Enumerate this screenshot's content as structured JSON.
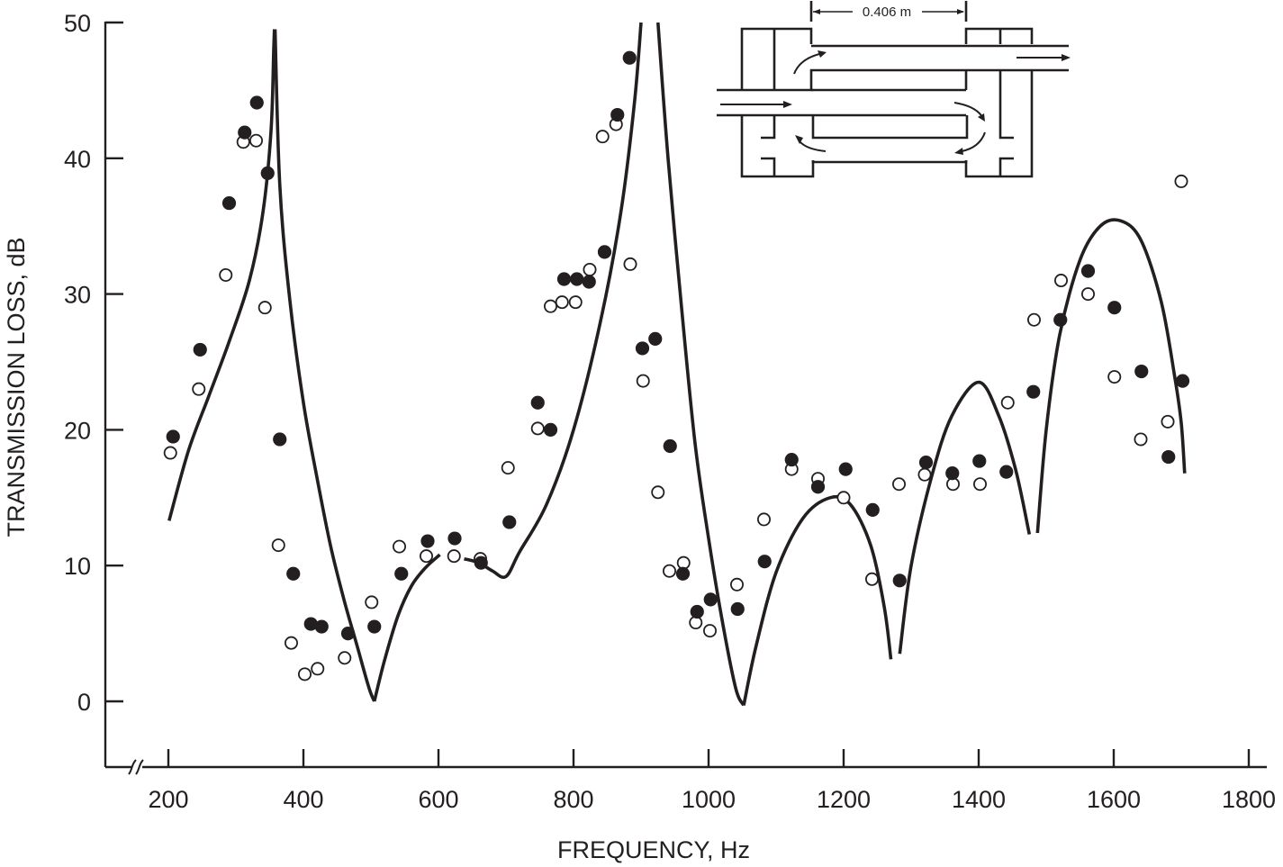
{
  "chart_data": {
    "type": "scatter",
    "title": "",
    "xlabel": "FREQUENCY, Hz",
    "ylabel": "TRANSMISSION LOSS, dB",
    "xlim": [
      150,
      1810
    ],
    "ylim": [
      -4.8,
      50
    ],
    "x_ticks": [
      200,
      400,
      600,
      800,
      1000,
      1200,
      1400,
      1600,
      1800
    ],
    "y_ticks": [
      0,
      10,
      20,
      30,
      40,
      50
    ],
    "x_axis_break": true,
    "grid": false,
    "legend": null,
    "inset": {
      "type": "muffler-schematic",
      "dimension_label": "0.406 m",
      "description": "Double-reversal muffler with inlet tube (left), outlet tube (right), flow arrows"
    },
    "series": [
      {
        "name": "Theory (solid curve)",
        "kind": "line",
        "color": "#231f20",
        "segments": [
          [
            [
              201,
              13.3
            ],
            [
              230,
              18.5
            ],
            [
              260,
              22.5
            ],
            [
              290,
              26.5
            ],
            [
              320,
              31
            ],
            [
              340,
              36
            ],
            [
              352,
              42
            ],
            [
              356,
              48
            ],
            [
              357,
              49.5
            ]
          ],
          [
            [
              358,
              49.5
            ],
            [
              365,
              38
            ],
            [
              380,
              29.5
            ],
            [
              400,
              22
            ],
            [
              420,
              16.5
            ],
            [
              440,
              11.5
            ],
            [
              460,
              7.5
            ],
            [
              480,
              4
            ],
            [
              497,
              1
            ],
            [
              505,
              0
            ]
          ],
          [
            [
              505,
              0
            ],
            [
              520,
              3
            ],
            [
              540,
              6.3
            ],
            [
              560,
              8.5
            ],
            [
              580,
              9.8
            ],
            [
              602,
              10.8
            ]
          ],
          [
            [
              638,
              10.5
            ],
            [
              660,
              10.2
            ],
            [
              680,
              9.6
            ],
            [
              700,
              9.2
            ],
            [
              720,
              11
            ],
            [
              760,
              14.5
            ],
            [
              800,
              20
            ],
            [
              840,
              28
            ],
            [
              870,
              36
            ],
            [
              890,
              44
            ],
            [
              900,
              50
            ]
          ],
          [
            [
              925,
              50
            ],
            [
              940,
              40
            ],
            [
              960,
              29
            ],
            [
              980,
              19
            ],
            [
              1000,
              12
            ],
            [
              1020,
              6
            ],
            [
              1040,
              1
            ],
            [
              1052,
              -0.3
            ]
          ],
          [
            [
              1052,
              -0.3
            ],
            [
              1070,
              4
            ],
            [
              1100,
              9.5
            ],
            [
              1140,
              13.5
            ],
            [
              1180,
              15
            ],
            [
              1210,
              14.5
            ],
            [
              1240,
              11.5
            ],
            [
              1260,
              7
            ],
            [
              1270,
              3.1
            ]
          ],
          [
            [
              1283,
              3.5
            ],
            [
              1300,
              10
            ],
            [
              1330,
              16.5
            ],
            [
              1360,
              21
            ],
            [
              1400,
              23.5
            ],
            [
              1430,
              21
            ],
            [
              1455,
              17
            ],
            [
              1475,
              12.3
            ]
          ],
          [
            [
              1487,
              12.4
            ],
            [
              1500,
              20
            ],
            [
              1520,
              27
            ],
            [
              1550,
              32.5
            ],
            [
              1580,
              35
            ],
            [
              1610,
              35.4
            ],
            [
              1640,
              34
            ],
            [
              1670,
              29.5
            ],
            [
              1690,
              24
            ],
            [
              1700,
              20.5
            ],
            [
              1705,
              16.8
            ]
          ]
        ]
      },
      {
        "name": "Measured (filled circles)",
        "kind": "points",
        "marker": "filled-circle",
        "points": [
          [
            207,
            19.5
          ],
          [
            247,
            25.9
          ],
          [
            290,
            36.7
          ],
          [
            313,
            41.9
          ],
          [
            331,
            44.1
          ],
          [
            347,
            38.9
          ],
          [
            365,
            19.3
          ],
          [
            385,
            9.4
          ],
          [
            411,
            5.7
          ],
          [
            427,
            5.5
          ],
          [
            466,
            5.0
          ],
          [
            505,
            5.5
          ],
          [
            545,
            9.4
          ],
          [
            584,
            11.8
          ],
          [
            624,
            12.0
          ],
          [
            663,
            10.2
          ],
          [
            705,
            13.2
          ],
          [
            747,
            22.0
          ],
          [
            766,
            20.0
          ],
          [
            786,
            31.1
          ],
          [
            805,
            31.1
          ],
          [
            823,
            30.9
          ],
          [
            846,
            33.1
          ],
          [
            865,
            43.2
          ],
          [
            883,
            47.4
          ],
          [
            902,
            26.0
          ],
          [
            921,
            26.7
          ],
          [
            943,
            18.8
          ],
          [
            962,
            9.4
          ],
          [
            983,
            6.6
          ],
          [
            1003,
            7.5
          ],
          [
            1043,
            6.8
          ],
          [
            1083,
            10.3
          ],
          [
            1123,
            17.8
          ],
          [
            1162,
            15.8
          ],
          [
            1203,
            17.1
          ],
          [
            1243,
            14.1
          ],
          [
            1283,
            8.9
          ],
          [
            1322,
            17.6
          ],
          [
            1361,
            16.8
          ],
          [
            1401,
            17.7
          ],
          [
            1441,
            16.9
          ],
          [
            1481,
            22.8
          ],
          [
            1521,
            28.1
          ],
          [
            1562,
            31.7
          ],
          [
            1601,
            29.0
          ],
          [
            1641,
            24.3
          ],
          [
            1681,
            18.0
          ],
          [
            1702,
            23.6
          ]
        ]
      },
      {
        "name": "Measured (open circles)",
        "kind": "points",
        "marker": "open-circle",
        "points": [
          [
            203,
            18.3
          ],
          [
            245,
            23.0
          ],
          [
            285,
            31.4
          ],
          [
            311,
            41.2
          ],
          [
            330,
            41.3
          ],
          [
            343,
            29.0
          ],
          [
            363,
            11.5
          ],
          [
            382,
            4.3
          ],
          [
            402,
            2.0
          ],
          [
            421,
            2.4
          ],
          [
            461,
            3.2
          ],
          [
            501,
            7.3
          ],
          [
            542,
            11.4
          ],
          [
            582,
            10.7
          ],
          [
            623,
            10.7
          ],
          [
            662,
            10.5
          ],
          [
            703,
            17.2
          ],
          [
            747,
            20.1
          ],
          [
            766,
            29.1
          ],
          [
            783,
            29.4
          ],
          [
            803,
            29.4
          ],
          [
            824,
            31.8
          ],
          [
            843,
            41.6
          ],
          [
            863,
            42.5
          ],
          [
            884,
            32.2
          ],
          [
            903,
            23.6
          ],
          [
            925,
            15.4
          ],
          [
            942,
            9.6
          ],
          [
            963,
            10.2
          ],
          [
            981,
            5.8
          ],
          [
            1002,
            5.2
          ],
          [
            1042,
            8.6
          ],
          [
            1082,
            13.4
          ],
          [
            1123,
            17.1
          ],
          [
            1162,
            16.4
          ],
          [
            1200,
            15.0
          ],
          [
            1242,
            9.0
          ],
          [
            1282,
            16.0
          ],
          [
            1320,
            16.7
          ],
          [
            1362,
            16.0
          ],
          [
            1402,
            16.0
          ],
          [
            1443,
            22.0
          ],
          [
            1482,
            28.1
          ],
          [
            1522,
            31.0
          ],
          [
            1562,
            30.0
          ],
          [
            1601,
            23.9
          ],
          [
            1640,
            19.3
          ],
          [
            1680,
            20.6
          ],
          [
            1700,
            38.3
          ]
        ]
      }
    ]
  }
}
